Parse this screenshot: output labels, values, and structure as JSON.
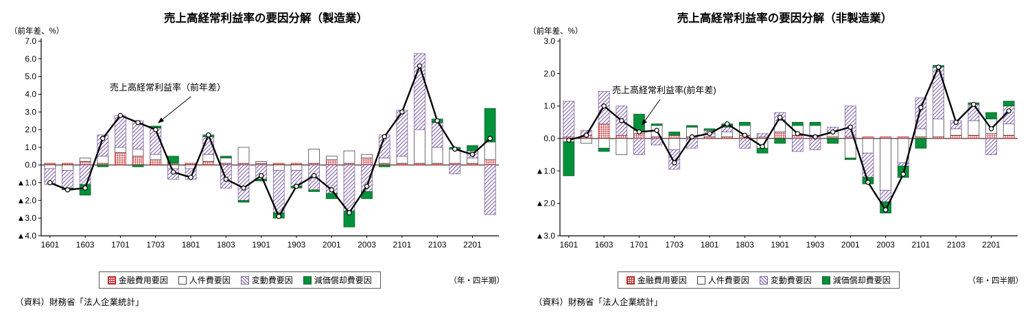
{
  "legend_labels": [
    "金融費用要因",
    "人件費要因",
    "変動費要因",
    "減価償却費要因"
  ],
  "chart_data": [
    {
      "type": "bar",
      "subtype": "stacked bars with line overlay",
      "title": "売上高経常利益率の要因分解（製造業）",
      "unit": "（前年差、%）",
      "annotation": "売上高経常利益率（前年差）",
      "xlabel_note": "（年・四半期）",
      "source": "（資料）財務省「法人企業統計」",
      "ylim": [
        -4,
        7
      ],
      "ytick_step": 1,
      "negative_prefix": "▲",
      "categories": [
        "1601",
        "1602",
        "1603",
        "1604",
        "1701",
        "1702",
        "1703",
        "1704",
        "1801",
        "1802",
        "1803",
        "1804",
        "1901",
        "1902",
        "1903",
        "1904",
        "2001",
        "2002",
        "2003",
        "2004",
        "2101",
        "2102",
        "2103",
        "2104",
        "2201",
        "2202"
      ],
      "series": [
        {
          "name": "金融費用要因",
          "type": "bar",
          "fill": "grid",
          "color": "#c42222",
          "values": [
            0.1,
            0.1,
            0.2,
            0.1,
            0.7,
            0.5,
            0.3,
            0.1,
            0.1,
            0.2,
            0.1,
            0.1,
            0.1,
            0.1,
            0.1,
            0.1,
            0.3,
            0.1,
            0.4,
            0.1,
            0.1,
            0.1,
            0.1,
            0.1,
            0.1,
            0.3
          ]
        },
        {
          "name": "人件費要因",
          "type": "bar",
          "fill": "white",
          "color": "#444444",
          "values": [
            -0.2,
            -0.3,
            0.2,
            0.4,
            0.3,
            0.4,
            0.3,
            -0.2,
            -0.2,
            0.4,
            0.3,
            0.9,
            0.1,
            -0.3,
            -0.3,
            0.8,
            0.2,
            0.7,
            0.2,
            0.3,
            0.4,
            1.9,
            0.9,
            0.8,
            0.3,
            1.0
          ]
        },
        {
          "name": "変動費要因",
          "type": "bar",
          "fill": "hatch",
          "color": "#7d5fa5",
          "values": [
            -0.9,
            -1.0,
            -1.1,
            1.2,
            1.8,
            1.6,
            1.5,
            -0.6,
            -0.6,
            1.0,
            -1.3,
            -2.0,
            -0.8,
            -2.4,
            -0.9,
            -1.4,
            -1.6,
            -2.6,
            -1.5,
            1.3,
            2.6,
            4.3,
            1.4,
            -0.5,
            0.4,
            -2.8
          ]
        },
        {
          "name": "減価償却費要因",
          "type": "bar",
          "fill": "solid",
          "color": "#00913a",
          "values": [
            0.0,
            -0.1,
            -0.6,
            -0.1,
            0.0,
            -0.1,
            0.1,
            0.4,
            0.0,
            0.1,
            0.1,
            -0.1,
            -0.1,
            -0.3,
            -0.1,
            -0.1,
            -0.3,
            -0.9,
            -0.4,
            -0.1,
            0.0,
            0.0,
            0.2,
            0.1,
            0.3,
            1.9
          ]
        },
        {
          "name": "売上高経常利益率（前年差）",
          "type": "line",
          "color": "#000000",
          "values": [
            -1.0,
            -1.4,
            -1.3,
            1.5,
            2.8,
            2.4,
            2.0,
            -0.4,
            -0.7,
            1.7,
            -0.8,
            -1.3,
            -0.6,
            -2.9,
            -1.2,
            -0.6,
            -1.4,
            -2.7,
            -1.2,
            1.6,
            3.0,
            5.6,
            2.5,
            0.9,
            0.6,
            1.5
          ]
        }
      ]
    },
    {
      "type": "bar",
      "subtype": "stacked bars with line overlay",
      "title": "売上高経常利益率の要因分解（非製造業）",
      "unit": "（前年差、%）",
      "annotation": "売上高経常利益率(前年差)",
      "xlabel_note": "（年・四半期）",
      "source": "（資料）財務省「法人企業統計」",
      "ylim": [
        -3,
        3
      ],
      "ytick_step": 1,
      "negative_prefix": "▲",
      "categories": [
        "1601",
        "1602",
        "1603",
        "1604",
        "1701",
        "1702",
        "1703",
        "1704",
        "1801",
        "1802",
        "1803",
        "1804",
        "1901",
        "1902",
        "1903",
        "1904",
        "2001",
        "2002",
        "2003",
        "2004",
        "2101",
        "2102",
        "2103",
        "2104",
        "2201",
        "2202"
      ],
      "series": [
        {
          "name": "金融費用要因",
          "type": "bar",
          "fill": "grid",
          "color": "#c42222",
          "values": [
            0.05,
            0.1,
            0.45,
            0.1,
            0.15,
            0.05,
            0.1,
            0.05,
            0.05,
            0.05,
            0.1,
            0.05,
            0.2,
            0.1,
            0.1,
            0.05,
            0.05,
            0.05,
            0.05,
            0.05,
            0.05,
            0.05,
            0.1,
            0.1,
            0.15,
            0.1
          ]
        },
        {
          "name": "人件費要因",
          "type": "bar",
          "fill": "white",
          "color": "#444444",
          "values": [
            -0.1,
            -0.15,
            -0.3,
            -0.5,
            0.1,
            0.35,
            -0.35,
            0.3,
            0.1,
            0.15,
            0.3,
            -0.3,
            0.35,
            0.3,
            0.3,
            0.15,
            -0.6,
            -0.45,
            -1.6,
            -0.75,
            0.25,
            0.55,
            0.2,
            0.45,
            0.45,
            0.35
          ]
        },
        {
          "name": "変動費要因",
          "type": "bar",
          "fill": "hatch",
          "color": "#7d5fa5",
          "values": [
            1.1,
            0.15,
            1.0,
            0.9,
            -0.5,
            -0.2,
            -0.6,
            -0.3,
            0.1,
            0.15,
            -0.3,
            0.1,
            0.25,
            -0.4,
            -0.35,
            0.15,
            0.95,
            -0.75,
            -0.35,
            -0.1,
            0.95,
            1.6,
            0.25,
            0.5,
            -0.5,
            0.55
          ]
        },
        {
          "name": "減価償却費要因",
          "type": "bar",
          "fill": "solid",
          "color": "#00913a",
          "values": [
            -1.05,
            0.0,
            -0.1,
            0.0,
            0.5,
            0.05,
            0.1,
            0.05,
            0.05,
            0.1,
            0.1,
            -0.15,
            -0.15,
            0.1,
            0.1,
            -0.15,
            -0.05,
            -0.2,
            -0.35,
            -0.35,
            -0.3,
            0.05,
            0.0,
            0.05,
            0.2,
            0.15
          ]
        },
        {
          "name": "売上高経常利益率(前年差)",
          "type": "line",
          "color": "#000000",
          "values": [
            -0.05,
            0.1,
            1.0,
            0.55,
            0.2,
            0.25,
            -0.75,
            0.05,
            0.15,
            0.45,
            0.1,
            -0.25,
            0.65,
            0.15,
            0.05,
            0.2,
            0.35,
            -1.35,
            -2.2,
            -1.1,
            0.95,
            2.2,
            0.5,
            1.05,
            0.3,
            0.85
          ]
        }
      ]
    }
  ]
}
